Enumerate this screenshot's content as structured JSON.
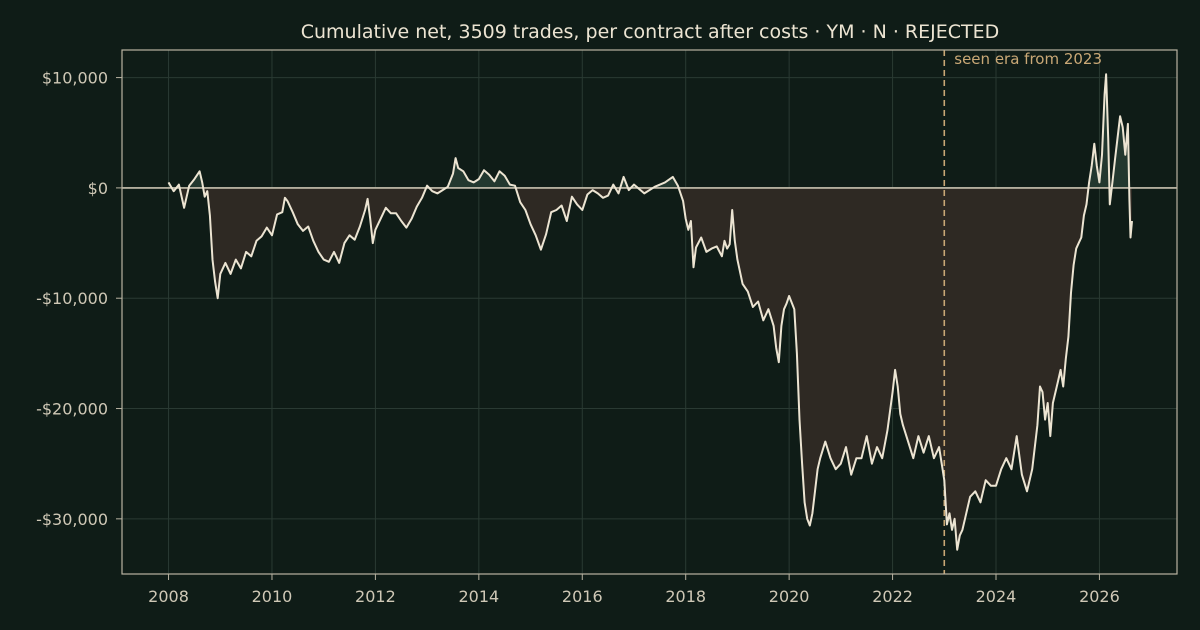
{
  "chart_data": {
    "type": "line",
    "title": "Cumulative net, 3509 trades, per contract after costs  ·  YM · N · REJECTED",
    "xlabel": "",
    "ylabel": "",
    "xlim": [
      2007.1,
      2027.5
    ],
    "ylim": [
      -35000,
      12500
    ],
    "x_ticks": [
      2008,
      2010,
      2012,
      2014,
      2016,
      2018,
      2020,
      2022,
      2024,
      2026
    ],
    "x_tick_labels": [
      "2008",
      "2010",
      "2012",
      "2014",
      "2016",
      "2018",
      "2020",
      "2022",
      "2024",
      "2026"
    ],
    "y_ticks": [
      10000,
      0,
      -10000,
      -20000,
      -30000
    ],
    "y_tick_labels": [
      "$10,000",
      "$0",
      "-$10,000",
      "-$20,000",
      "-$30,000"
    ],
    "grid": true,
    "fill_to_zero": true,
    "annotation": {
      "x": 2023.0,
      "label": "seen era from 2023",
      "style": "dashed-vertical"
    },
    "colors": {
      "background": "#0f1c17",
      "line": "#ece4d2",
      "fill_below": "#2e2923",
      "fill_above": "#23382f",
      "zero_line": "#c9c2b0",
      "annotation": "#c9a876",
      "grid": "#2a3a33",
      "axes": "#b9b3a2"
    },
    "series": [
      {
        "points": [
          [
            2008.0,
            500
          ],
          [
            2008.1,
            -300
          ],
          [
            2008.2,
            300
          ],
          [
            2008.3,
            -1800
          ],
          [
            2008.4,
            200
          ],
          [
            2008.5,
            800
          ],
          [
            2008.6,
            1500
          ],
          [
            2008.65,
            500
          ],
          [
            2008.7,
            -800
          ],
          [
            2008.75,
            -300
          ],
          [
            2008.8,
            -2500
          ],
          [
            2008.85,
            -6500
          ],
          [
            2008.9,
            -8500
          ],
          [
            2008.95,
            -10000
          ],
          [
            2009.0,
            -7800
          ],
          [
            2009.1,
            -6800
          ],
          [
            2009.2,
            -7800
          ],
          [
            2009.3,
            -6500
          ],
          [
            2009.4,
            -7300
          ],
          [
            2009.5,
            -5800
          ],
          [
            2009.6,
            -6200
          ],
          [
            2009.7,
            -4800
          ],
          [
            2009.8,
            -4400
          ],
          [
            2009.9,
            -3600
          ],
          [
            2010.0,
            -4300
          ],
          [
            2010.1,
            -2400
          ],
          [
            2010.2,
            -2200
          ],
          [
            2010.25,
            -900
          ],
          [
            2010.3,
            -1200
          ],
          [
            2010.4,
            -2200
          ],
          [
            2010.5,
            -3300
          ],
          [
            2010.6,
            -3900
          ],
          [
            2010.7,
            -3500
          ],
          [
            2010.8,
            -4800
          ],
          [
            2010.9,
            -5800
          ],
          [
            2011.0,
            -6500
          ],
          [
            2011.1,
            -6700
          ],
          [
            2011.2,
            -5800
          ],
          [
            2011.3,
            -6800
          ],
          [
            2011.4,
            -5000
          ],
          [
            2011.5,
            -4300
          ],
          [
            2011.6,
            -4700
          ],
          [
            2011.7,
            -3500
          ],
          [
            2011.8,
            -2000
          ],
          [
            2011.85,
            -1000
          ],
          [
            2011.9,
            -2800
          ],
          [
            2011.95,
            -5000
          ],
          [
            2012.0,
            -3800
          ],
          [
            2012.1,
            -2800
          ],
          [
            2012.2,
            -1800
          ],
          [
            2012.3,
            -2300
          ],
          [
            2012.4,
            -2300
          ],
          [
            2012.5,
            -3000
          ],
          [
            2012.6,
            -3600
          ],
          [
            2012.7,
            -2800
          ],
          [
            2012.8,
            -1700
          ],
          [
            2012.9,
            -900
          ],
          [
            2013.0,
            200
          ],
          [
            2013.1,
            -300
          ],
          [
            2013.2,
            -500
          ],
          [
            2013.3,
            -200
          ],
          [
            2013.4,
            100
          ],
          [
            2013.5,
            1300
          ],
          [
            2013.55,
            2700
          ],
          [
            2013.6,
            1800
          ],
          [
            2013.7,
            1500
          ],
          [
            2013.8,
            700
          ],
          [
            2013.9,
            500
          ],
          [
            2014.0,
            800
          ],
          [
            2014.1,
            1600
          ],
          [
            2014.2,
            1200
          ],
          [
            2014.3,
            600
          ],
          [
            2014.4,
            1500
          ],
          [
            2014.5,
            1100
          ],
          [
            2014.6,
            300
          ],
          [
            2014.7,
            200
          ],
          [
            2014.8,
            -1300
          ],
          [
            2014.9,
            -2000
          ],
          [
            2015.0,
            -3300
          ],
          [
            2015.1,
            -4300
          ],
          [
            2015.2,
            -5600
          ],
          [
            2015.3,
            -4200
          ],
          [
            2015.4,
            -2200
          ],
          [
            2015.5,
            -2000
          ],
          [
            2015.6,
            -1600
          ],
          [
            2015.7,
            -3000
          ],
          [
            2015.8,
            -800
          ],
          [
            2015.9,
            -1500
          ],
          [
            2016.0,
            -2000
          ],
          [
            2016.1,
            -600
          ],
          [
            2016.2,
            -200
          ],
          [
            2016.3,
            -500
          ],
          [
            2016.4,
            -900
          ],
          [
            2016.5,
            -700
          ],
          [
            2016.6,
            300
          ],
          [
            2016.7,
            -500
          ],
          [
            2016.8,
            1000
          ],
          [
            2016.9,
            -200
          ],
          [
            2017.0,
            300
          ],
          [
            2017.2,
            -500
          ],
          [
            2017.4,
            100
          ],
          [
            2017.6,
            500
          ],
          [
            2017.75,
            1000
          ],
          [
            2017.85,
            200
          ],
          [
            2017.95,
            -1200
          ],
          [
            2018.0,
            -2800
          ],
          [
            2018.05,
            -3800
          ],
          [
            2018.1,
            -3000
          ],
          [
            2018.15,
            -7200
          ],
          [
            2018.2,
            -5400
          ],
          [
            2018.3,
            -4500
          ],
          [
            2018.4,
            -5800
          ],
          [
            2018.5,
            -5500
          ],
          [
            2018.6,
            -5300
          ],
          [
            2018.7,
            -6200
          ],
          [
            2018.75,
            -4800
          ],
          [
            2018.8,
            -5500
          ],
          [
            2018.85,
            -5100
          ],
          [
            2018.9,
            -2000
          ],
          [
            2018.95,
            -4800
          ],
          [
            2019.0,
            -6500
          ],
          [
            2019.1,
            -8700
          ],
          [
            2019.2,
            -9400
          ],
          [
            2019.3,
            -10800
          ],
          [
            2019.4,
            -10300
          ],
          [
            2019.5,
            -12000
          ],
          [
            2019.6,
            -11000
          ],
          [
            2019.7,
            -12500
          ],
          [
            2019.75,
            -14500
          ],
          [
            2019.8,
            -15800
          ],
          [
            2019.85,
            -12500
          ],
          [
            2019.9,
            -11000
          ],
          [
            2019.95,
            -10500
          ],
          [
            2020.0,
            -9800
          ],
          [
            2020.1,
            -11000
          ],
          [
            2020.15,
            -15000
          ],
          [
            2020.2,
            -21000
          ],
          [
            2020.25,
            -25000
          ],
          [
            2020.3,
            -28500
          ],
          [
            2020.35,
            -30000
          ],
          [
            2020.4,
            -30600
          ],
          [
            2020.45,
            -29500
          ],
          [
            2020.5,
            -27500
          ],
          [
            2020.55,
            -25500
          ],
          [
            2020.6,
            -24500
          ],
          [
            2020.7,
            -23000
          ],
          [
            2020.8,
            -24500
          ],
          [
            2020.9,
            -25500
          ],
          [
            2021.0,
            -25000
          ],
          [
            2021.1,
            -23500
          ],
          [
            2021.2,
            -26000
          ],
          [
            2021.3,
            -24500
          ],
          [
            2021.4,
            -24500
          ],
          [
            2021.5,
            -22500
          ],
          [
            2021.6,
            -25000
          ],
          [
            2021.7,
            -23500
          ],
          [
            2021.8,
            -24500
          ],
          [
            2021.9,
            -22000
          ],
          [
            2022.0,
            -18500
          ],
          [
            2022.05,
            -16500
          ],
          [
            2022.1,
            -18000
          ],
          [
            2022.15,
            -20500
          ],
          [
            2022.2,
            -21500
          ],
          [
            2022.3,
            -23000
          ],
          [
            2022.4,
            -24500
          ],
          [
            2022.5,
            -22500
          ],
          [
            2022.6,
            -24000
          ],
          [
            2022.7,
            -22500
          ],
          [
            2022.8,
            -24500
          ],
          [
            2022.9,
            -23500
          ],
          [
            2022.95,
            -25000
          ],
          [
            2023.0,
            -26500
          ],
          [
            2023.05,
            -30500
          ],
          [
            2023.1,
            -29500
          ],
          [
            2023.15,
            -31000
          ],
          [
            2023.2,
            -30000
          ],
          [
            2023.25,
            -32800
          ],
          [
            2023.3,
            -31500
          ],
          [
            2023.35,
            -31000
          ],
          [
            2023.4,
            -30000
          ],
          [
            2023.5,
            -28000
          ],
          [
            2023.6,
            -27500
          ],
          [
            2023.7,
            -28500
          ],
          [
            2023.8,
            -26500
          ],
          [
            2023.9,
            -27000
          ],
          [
            2024.0,
            -27000
          ],
          [
            2024.1,
            -25500
          ],
          [
            2024.2,
            -24500
          ],
          [
            2024.3,
            -25500
          ],
          [
            2024.4,
            -22500
          ],
          [
            2024.5,
            -26000
          ],
          [
            2024.6,
            -27500
          ],
          [
            2024.7,
            -25500
          ],
          [
            2024.8,
            -21500
          ],
          [
            2024.85,
            -18000
          ],
          [
            2024.9,
            -18500
          ],
          [
            2024.95,
            -21000
          ],
          [
            2025.0,
            -19500
          ],
          [
            2025.05,
            -22500
          ],
          [
            2025.1,
            -19500
          ],
          [
            2025.15,
            -18500
          ],
          [
            2025.2,
            -17500
          ],
          [
            2025.25,
            -16500
          ],
          [
            2025.3,
            -18000
          ],
          [
            2025.35,
            -15500
          ],
          [
            2025.4,
            -13500
          ],
          [
            2025.45,
            -9500
          ],
          [
            2025.5,
            -7000
          ],
          [
            2025.55,
            -5500
          ],
          [
            2025.6,
            -5000
          ],
          [
            2025.65,
            -4500
          ],
          [
            2025.7,
            -2500
          ],
          [
            2025.75,
            -1500
          ],
          [
            2025.8,
            500
          ],
          [
            2025.85,
            2000
          ],
          [
            2025.9,
            4000
          ],
          [
            2025.95,
            2000
          ],
          [
            2026.0,
            500
          ],
          [
            2026.05,
            3000
          ],
          [
            2026.1,
            8500
          ],
          [
            2026.13,
            10300
          ],
          [
            2026.17,
            4500
          ],
          [
            2026.2,
            -1500
          ],
          [
            2026.25,
            500
          ],
          [
            2026.3,
            2500
          ],
          [
            2026.35,
            4500
          ],
          [
            2026.4,
            6500
          ],
          [
            2026.45,
            5500
          ],
          [
            2026.5,
            3000
          ],
          [
            2026.55,
            5800
          ],
          [
            2026.58,
            -1000
          ],
          [
            2026.6,
            -4500
          ],
          [
            2026.63,
            -3000
          ]
        ]
      }
    ]
  }
}
